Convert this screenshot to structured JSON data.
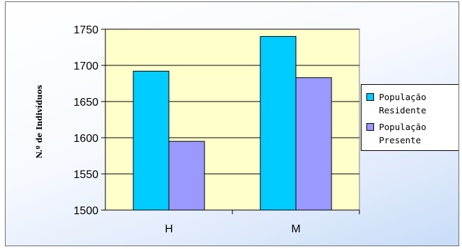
{
  "chart_data": {
    "type": "bar",
    "categories": [
      "H",
      "M"
    ],
    "series": [
      {
        "name": "População Residente",
        "values": [
          1692,
          1740
        ],
        "color": "#00ccff"
      },
      {
        "name": "População Presente",
        "values": [
          1595,
          1683
        ],
        "color": "#9999ff"
      }
    ],
    "ylabel": "N.º de Indivíduos",
    "xlabel": "",
    "ylim": [
      1500,
      1750
    ],
    "yticks": [
      1500,
      1550,
      1600,
      1650,
      1700,
      1750
    ],
    "grid": true,
    "plot_background": "#ffffcc",
    "legend_position": "right",
    "legend": [
      {
        "line1": "População",
        "line2": "Residente"
      },
      {
        "line1": "População",
        "line2": "Presente"
      }
    ]
  }
}
